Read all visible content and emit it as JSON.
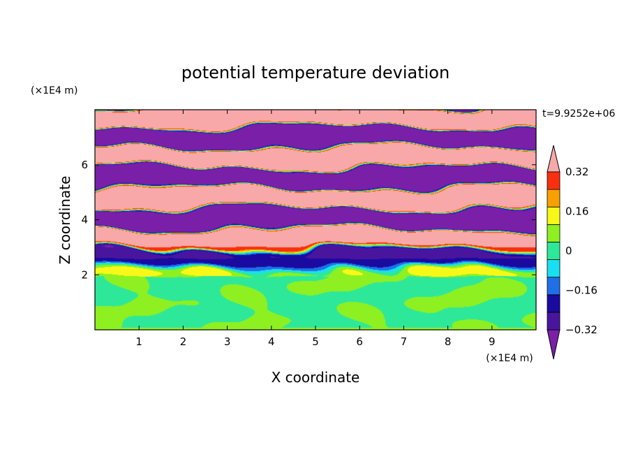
{
  "chart_data": {
    "type": "heatmap",
    "title": "potential temperature deviation",
    "xlabel": "X coordinate",
    "ylabel": "Z coordinate",
    "x_unit": "(×1E4 m)",
    "y_unit": "(×1E4 m)",
    "time_label": "t=9.9252e+06",
    "xlim": [
      0,
      10
    ],
    "ylim": [
      0,
      8
    ],
    "x_ticks": [
      1,
      2,
      3,
      4,
      5,
      6,
      7,
      8,
      9
    ],
    "y_ticks": [
      2,
      4,
      6
    ],
    "colorbar": {
      "levels": [
        -0.4,
        -0.32,
        -0.24,
        -0.16,
        -0.08,
        0,
        0.08,
        0.16,
        0.24,
        0.32,
        0.4
      ],
      "tick_labels": [
        "0.32",
        "0.16",
        "0",
        "−0.16",
        "−0.32"
      ],
      "tick_values": [
        0.32,
        0.16,
        0,
        -0.16,
        -0.32
      ],
      "colors": [
        "#7a1fa8",
        "#4a159e",
        "#1a0aa0",
        "#1f6fe8",
        "#18e0f0",
        "#2ee89a",
        "#8ef020",
        "#f8f818",
        "#f8a000",
        "#f83010",
        "#f8a8a8"
      ],
      "extend": "both"
    },
    "description_fields": {
      "lower_layer": "Z 0 to 2: values near 0 to 0.08 (green/light green)",
      "upper_layer": "Z 2 to 8: alternating layers of about +0.4 (pink) and -0.4 (purple)"
    }
  }
}
